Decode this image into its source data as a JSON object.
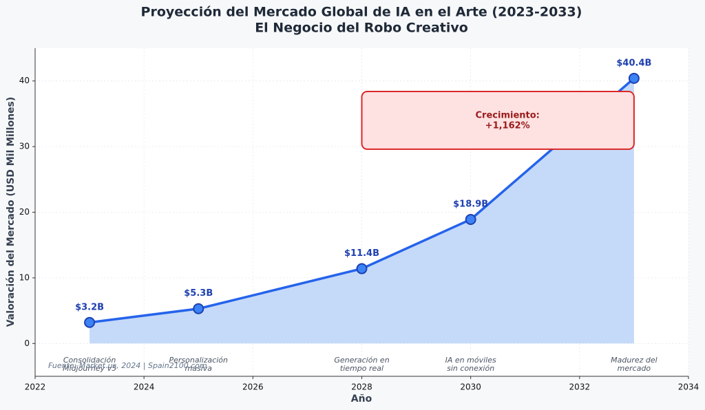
{
  "chart_data": {
    "type": "line",
    "title": "Proyección del Mercado Global de IA en el Arte (2023-2033)",
    "subtitle": "El Negocio del Robo Creativo",
    "x_label": "Año",
    "y_label": "Valoración del Mercado (USD Mil Millones)",
    "x": [
      2023,
      2025,
      2028,
      2030,
      2033
    ],
    "values": [
      3.2,
      5.3,
      11.4,
      18.9,
      40.4
    ],
    "value_labels": [
      "$3.2B",
      "$5.3B",
      "$11.4B",
      "$18.9B",
      "$40.4B"
    ],
    "milestones": [
      [
        "Consolidación",
        "Midjourney v5"
      ],
      [
        "Personalización",
        "masiva"
      ],
      [
        "Generación en",
        "tiempo real"
      ],
      [
        "IA en móviles",
        "sin conexión"
      ],
      [
        "Madurez del",
        "mercado"
      ]
    ],
    "color": "#2563eb",
    "marker_color": "#3b82f6",
    "area_color": "#bfd6f8",
    "xlim": [
      2022,
      2034
    ],
    "xticks": [
      2022,
      2024,
      2026,
      2028,
      2030,
      2032,
      2034
    ],
    "ylim": [
      -5,
      45
    ],
    "yticks": [
      0,
      10,
      20,
      30,
      40
    ],
    "grid": true,
    "annotation": [
      "Crecimiento:",
      "+1,162%"
    ],
    "source": "Fuente: Market.us, 2024 | Spain2100.com"
  }
}
